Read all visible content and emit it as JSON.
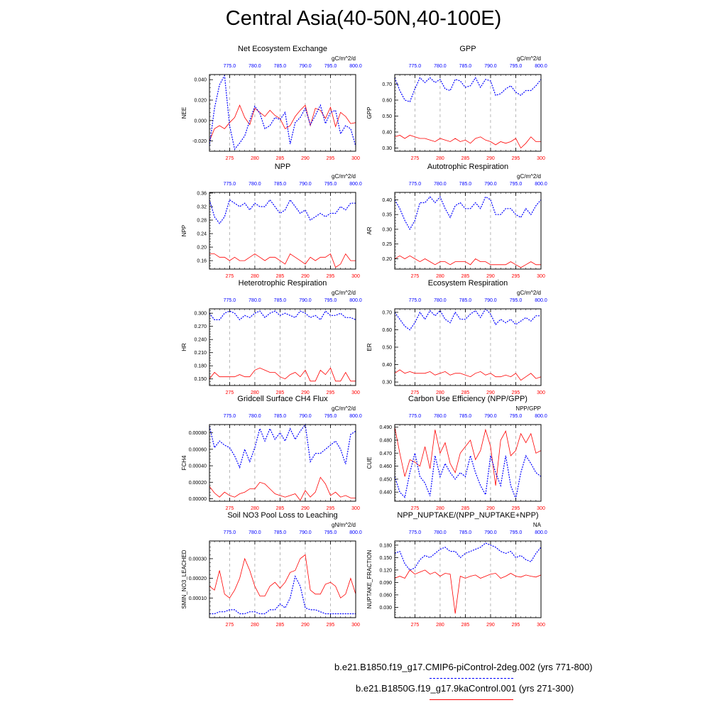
{
  "title": "Central Asia(40-50N,40-100E)",
  "colors": {
    "control": "#ff0000",
    "piControl": "#0000ff"
  },
  "bottom_axis": {
    "ticks": [
      "275",
      "280",
      "285",
      "290",
      "295",
      "300"
    ],
    "xlim": [
      271,
      300
    ]
  },
  "top_axis": {
    "ticks": [
      "775.0",
      "780.0",
      "785.0",
      "790.0",
      "795.0",
      "800.0"
    ],
    "xlim": [
      771,
      800
    ]
  },
  "legend": [
    {
      "label": "b.e21.B1850.f19_g17.CMIP6-piControl-2deg.002 (yrs 771-800)",
      "color": "#0000ff",
      "style": "dashed"
    },
    {
      "label": "b.e21.B1850G.f19_g17.9kaControl.001 (yrs 271-300)",
      "color": "#ff0000",
      "style": "solid"
    }
  ],
  "chart_data": [
    {
      "type": "line",
      "title": "Net Ecosystem Exchange",
      "units": "gC/m^2/d",
      "ylabel": "NEE",
      "ylim": [
        -0.03,
        0.045
      ],
      "yticks": [
        "-0.020",
        "0.000",
        "0.020",
        "0.040"
      ],
      "ytick_values": [
        -0.02,
        0,
        0.02,
        0.04
      ],
      "series": [
        {
          "values": [
            -0.02,
            -0.008,
            -0.005,
            -0.008,
            -0.002,
            0.003,
            0.015,
            0.003,
            -0.004,
            0.012,
            0.008,
            0.004,
            0.01,
            0.005,
            0.002,
            -0.008,
            -0.005,
            0.004,
            0.01,
            0.015,
            -0.005,
            0.012,
            0.01,
            0.002,
            0.013,
            -0.006,
            0.008,
            0.004,
            -0.003,
            -0.002
          ]
        },
        {
          "values": [
            -0.025,
            0.012,
            0.035,
            0.044,
            -0.005,
            -0.028,
            -0.022,
            -0.015,
            0.0,
            0.014,
            0.007,
            -0.008,
            -0.005,
            0.003,
            0.001,
            0.008,
            -0.023,
            -0.002,
            0.003,
            0.012,
            -0.004,
            0.005,
            0.015,
            -0.003,
            0.008,
            0.01,
            -0.013,
            -0.005,
            -0.008,
            -0.025
          ]
        }
      ]
    },
    {
      "type": "line",
      "title": "GPP",
      "units": "gC/m^2/d",
      "ylabel": "GPP",
      "ylim": [
        0.28,
        0.76
      ],
      "yticks": [
        "0.30",
        "0.40",
        "0.50",
        "0.60",
        "0.70"
      ],
      "ytick_values": [
        0.3,
        0.4,
        0.5,
        0.6,
        0.7
      ],
      "series": [
        {
          "values": [
            0.37,
            0.38,
            0.36,
            0.38,
            0.37,
            0.36,
            0.36,
            0.35,
            0.34,
            0.36,
            0.35,
            0.34,
            0.36,
            0.34,
            0.35,
            0.33,
            0.36,
            0.37,
            0.35,
            0.34,
            0.32,
            0.34,
            0.33,
            0.34,
            0.36,
            0.3,
            0.33,
            0.37,
            0.34,
            0.34
          ]
        },
        {
          "values": [
            0.74,
            0.66,
            0.6,
            0.59,
            0.67,
            0.74,
            0.71,
            0.74,
            0.71,
            0.73,
            0.67,
            0.66,
            0.73,
            0.72,
            0.68,
            0.69,
            0.74,
            0.68,
            0.73,
            0.72,
            0.63,
            0.64,
            0.67,
            0.69,
            0.65,
            0.63,
            0.66,
            0.66,
            0.69,
            0.73
          ]
        }
      ]
    },
    {
      "type": "line",
      "title": "NPP",
      "units": "gC/m^2/d",
      "ylabel": "NPP",
      "ylim": [
        0.135,
        0.362
      ],
      "yticks": [
        "0.16",
        "0.20",
        "0.24",
        "0.28",
        "0.32",
        "0.36"
      ],
      "ytick_values": [
        0.16,
        0.2,
        0.24,
        0.28,
        0.32,
        0.36
      ],
      "series": [
        {
          "values": [
            0.18,
            0.18,
            0.17,
            0.17,
            0.16,
            0.17,
            0.16,
            0.16,
            0.17,
            0.18,
            0.17,
            0.16,
            0.17,
            0.17,
            0.16,
            0.15,
            0.18,
            0.17,
            0.16,
            0.15,
            0.17,
            0.16,
            0.17,
            0.17,
            0.18,
            0.14,
            0.15,
            0.18,
            0.16,
            0.16
          ]
        },
        {
          "values": [
            0.34,
            0.29,
            0.27,
            0.29,
            0.34,
            0.33,
            0.32,
            0.33,
            0.31,
            0.33,
            0.32,
            0.32,
            0.34,
            0.32,
            0.3,
            0.31,
            0.34,
            0.32,
            0.3,
            0.31,
            0.28,
            0.29,
            0.3,
            0.29,
            0.3,
            0.3,
            0.32,
            0.31,
            0.33,
            0.33
          ]
        }
      ]
    },
    {
      "type": "line",
      "title": "Autotrophic Respiration",
      "units": "gC/m^2/d",
      "ylabel": "AR",
      "ylim": [
        0.165,
        0.425
      ],
      "yticks": [
        "0.20",
        "0.25",
        "0.30",
        "0.35",
        "0.40"
      ],
      "ytick_values": [
        0.2,
        0.25,
        0.3,
        0.35,
        0.4
      ],
      "series": [
        {
          "values": [
            0.2,
            0.21,
            0.2,
            0.21,
            0.2,
            0.19,
            0.2,
            0.19,
            0.18,
            0.19,
            0.19,
            0.18,
            0.19,
            0.19,
            0.19,
            0.18,
            0.2,
            0.19,
            0.19,
            0.18,
            0.18,
            0.18,
            0.18,
            0.19,
            0.18,
            0.17,
            0.18,
            0.19,
            0.18,
            0.18
          ]
        },
        {
          "values": [
            0.4,
            0.37,
            0.33,
            0.3,
            0.33,
            0.39,
            0.39,
            0.41,
            0.39,
            0.41,
            0.37,
            0.34,
            0.38,
            0.39,
            0.37,
            0.37,
            0.39,
            0.37,
            0.41,
            0.4,
            0.35,
            0.35,
            0.37,
            0.37,
            0.35,
            0.34,
            0.37,
            0.35,
            0.38,
            0.4
          ]
        }
      ]
    },
    {
      "type": "line",
      "title": "Heterotrophic Respiration",
      "units": "gC/m^2/d",
      "ylabel": "HR",
      "ylim": [
        0.135,
        0.31
      ],
      "yticks": [
        "0.150",
        "0.180",
        "0.210",
        "0.240",
        "0.270",
        "0.300"
      ],
      "ytick_values": [
        0.15,
        0.18,
        0.21,
        0.24,
        0.27,
        0.3
      ],
      "series": [
        {
          "values": [
            0.15,
            0.165,
            0.155,
            0.155,
            0.155,
            0.155,
            0.16,
            0.155,
            0.155,
            0.17,
            0.175,
            0.17,
            0.165,
            0.165,
            0.155,
            0.15,
            0.16,
            0.165,
            0.155,
            0.17,
            0.145,
            0.145,
            0.17,
            0.16,
            0.175,
            0.145,
            0.145,
            0.165,
            0.145,
            0.145
          ]
        },
        {
          "values": [
            0.3,
            0.285,
            0.285,
            0.3,
            0.305,
            0.3,
            0.285,
            0.295,
            0.29,
            0.3,
            0.305,
            0.29,
            0.3,
            0.305,
            0.295,
            0.3,
            0.295,
            0.29,
            0.305,
            0.3,
            0.29,
            0.295,
            0.285,
            0.305,
            0.295,
            0.295,
            0.3,
            0.29,
            0.29,
            0.285
          ]
        }
      ]
    },
    {
      "type": "line",
      "title": "Ecosystem Respiration",
      "units": "gC/m^2/d",
      "ylabel": "ER",
      "ylim": [
        0.28,
        0.72
      ],
      "yticks": [
        "0.30",
        "0.40",
        "0.50",
        "0.60",
        "0.70"
      ],
      "ytick_values": [
        0.3,
        0.4,
        0.5,
        0.6,
        0.7
      ],
      "series": [
        {
          "values": [
            0.35,
            0.37,
            0.35,
            0.36,
            0.35,
            0.35,
            0.35,
            0.36,
            0.34,
            0.35,
            0.36,
            0.34,
            0.35,
            0.35,
            0.34,
            0.33,
            0.35,
            0.36,
            0.34,
            0.35,
            0.33,
            0.33,
            0.34,
            0.33,
            0.35,
            0.31,
            0.33,
            0.35,
            0.32,
            0.33
          ]
        },
        {
          "values": [
            0.7,
            0.66,
            0.62,
            0.6,
            0.64,
            0.7,
            0.66,
            0.71,
            0.68,
            0.71,
            0.66,
            0.64,
            0.7,
            0.66,
            0.66,
            0.69,
            0.71,
            0.67,
            0.72,
            0.69,
            0.63,
            0.66,
            0.64,
            0.66,
            0.63,
            0.65,
            0.67,
            0.65,
            0.68,
            0.68
          ]
        }
      ]
    },
    {
      "type": "line",
      "title": "Gridcell Surface CH4 Flux",
      "units": "gC/m^2/d",
      "ylabel": "FCH4",
      "ylim": [
        -3e-05,
        0.0009
      ],
      "yticks": [
        "0.00000",
        "0.00020",
        "0.00040",
        "0.00060",
        "0.00080"
      ],
      "ytick_values": [
        0,
        0.0002,
        0.0004,
        0.0006,
        0.0008
      ],
      "series": [
        {
          "values": [
            0.00015,
            7e-05,
            2e-05,
            8e-05,
            4e-05,
            2e-05,
            6e-05,
            8e-05,
            0.00012,
            0.00012,
            0.0002,
            0.00018,
            0.00012,
            6e-05,
            4e-05,
            2e-05,
            4e-05,
            6e-05,
            -2e-05,
            0.0001,
            2e-05,
            8e-05,
            0.00026,
            0.00018,
            4e-05,
            8e-05,
            2e-05,
            4e-05,
            1e-05,
            1e-05
          ]
        },
        {
          "values": [
            0.00088,
            0.00062,
            0.0007,
            0.00065,
            0.00062,
            0.00052,
            0.00038,
            0.0006,
            0.00045,
            0.00062,
            0.00085,
            0.0007,
            0.00085,
            0.00072,
            0.0008,
            0.0007,
            0.00085,
            0.00072,
            0.00082,
            0.0009,
            0.00045,
            0.00055,
            0.00055,
            0.0006,
            0.00065,
            0.0007,
            0.0006,
            0.00042,
            0.00078,
            0.00082
          ]
        }
      ]
    },
    {
      "type": "line",
      "title": "Carbon Use Efficiency (NPP/GPP)",
      "units": "NPP/GPP",
      "ylabel": "CUE",
      "ylim": [
        0.433,
        0.492
      ],
      "yticks": [
        "0.440",
        "0.450",
        "0.460",
        "0.470",
        "0.480",
        "0.490"
      ],
      "ytick_values": [
        0.44,
        0.45,
        0.46,
        0.47,
        0.48,
        0.49
      ],
      "series": [
        {
          "values": [
            0.49,
            0.47,
            0.452,
            0.465,
            0.463,
            0.46,
            0.475,
            0.458,
            0.488,
            0.47,
            0.478,
            0.462,
            0.455,
            0.47,
            0.475,
            0.48,
            0.465,
            0.472,
            0.488,
            0.475,
            0.445,
            0.48,
            0.487,
            0.468,
            0.472,
            0.485,
            0.478,
            0.485,
            0.47,
            0.472
          ]
        },
        {
          "values": [
            0.452,
            0.44,
            0.436,
            0.455,
            0.47,
            0.452,
            0.447,
            0.437,
            0.468,
            0.452,
            0.462,
            0.455,
            0.45,
            0.455,
            0.452,
            0.468,
            0.455,
            0.445,
            0.438,
            0.468,
            0.455,
            0.445,
            0.468,
            0.445,
            0.435,
            0.455,
            0.468,
            0.462,
            0.455,
            0.452
          ]
        }
      ]
    },
    {
      "type": "line",
      "title": "Soil NO3 Pool Loss to Leaching",
      "units": "gN/m^2/d",
      "ylabel": "SMIN_NO3_LEACHED",
      "ylim": [
        0.0,
        0.00039
      ],
      "yticks": [
        "0.00010",
        "0.00020",
        "0.00030"
      ],
      "ytick_values": [
        0.0001,
        0.0002,
        0.0003
      ],
      "series": [
        {
          "values": [
            0.00016,
            0.00014,
            0.00024,
            0.00012,
            0.0001,
            0.00014,
            0.0002,
            0.0003,
            0.00024,
            0.00016,
            0.00011,
            0.00011,
            0.00016,
            0.00018,
            0.00015,
            0.00018,
            0.00023,
            0.00024,
            0.0003,
            0.00032,
            0.00014,
            0.00012,
            0.00012,
            0.00017,
            0.00018,
            0.00016,
            0.0001,
            0.00012,
            0.0002,
            0.00012
          ]
        },
        {
          "values": [
            2e-05,
            2e-05,
            3e-05,
            3e-05,
            4e-05,
            4e-05,
            2e-05,
            2e-05,
            3e-05,
            3e-05,
            2e-05,
            2e-05,
            4e-05,
            4e-05,
            7e-05,
            5e-05,
            0.0001,
            0.00021,
            0.00016,
            5e-05,
            4e-05,
            4e-05,
            3e-05,
            2e-05,
            2e-05,
            2e-05,
            2e-05,
            2e-05,
            2e-05,
            2e-05
          ]
        }
      ]
    },
    {
      "type": "line",
      "title": "NPP_NUPTAKE/(NPP_NUPTAKE+NPP)",
      "units": "NA",
      "ylabel": "NUPTAKE_FRACTION",
      "ylim": [
        0.005,
        0.19
      ],
      "yticks": [
        "0.030",
        "0.060",
        "0.090",
        "0.120",
        "0.150",
        "0.180"
      ],
      "ytick_values": [
        0.03,
        0.06,
        0.09,
        0.12,
        0.15,
        0.18
      ],
      "series": [
        {
          "values": [
            0.1,
            0.105,
            0.1,
            0.12,
            0.11,
            0.115,
            0.12,
            0.11,
            0.115,
            0.105,
            0.112,
            0.11,
            0.015,
            0.105,
            0.1,
            0.105,
            0.108,
            0.1,
            0.105,
            0.11,
            0.112,
            0.1,
            0.105,
            0.112,
            0.105,
            0.103,
            0.108,
            0.105,
            0.103,
            0.108
          ]
        },
        {
          "values": [
            0.16,
            0.165,
            0.135,
            0.12,
            0.125,
            0.145,
            0.155,
            0.15,
            0.16,
            0.17,
            0.175,
            0.165,
            0.165,
            0.15,
            0.16,
            0.165,
            0.17,
            0.175,
            0.185,
            0.18,
            0.175,
            0.165,
            0.16,
            0.165,
            0.15,
            0.155,
            0.145,
            0.14,
            0.16,
            0.175
          ]
        }
      ]
    }
  ]
}
